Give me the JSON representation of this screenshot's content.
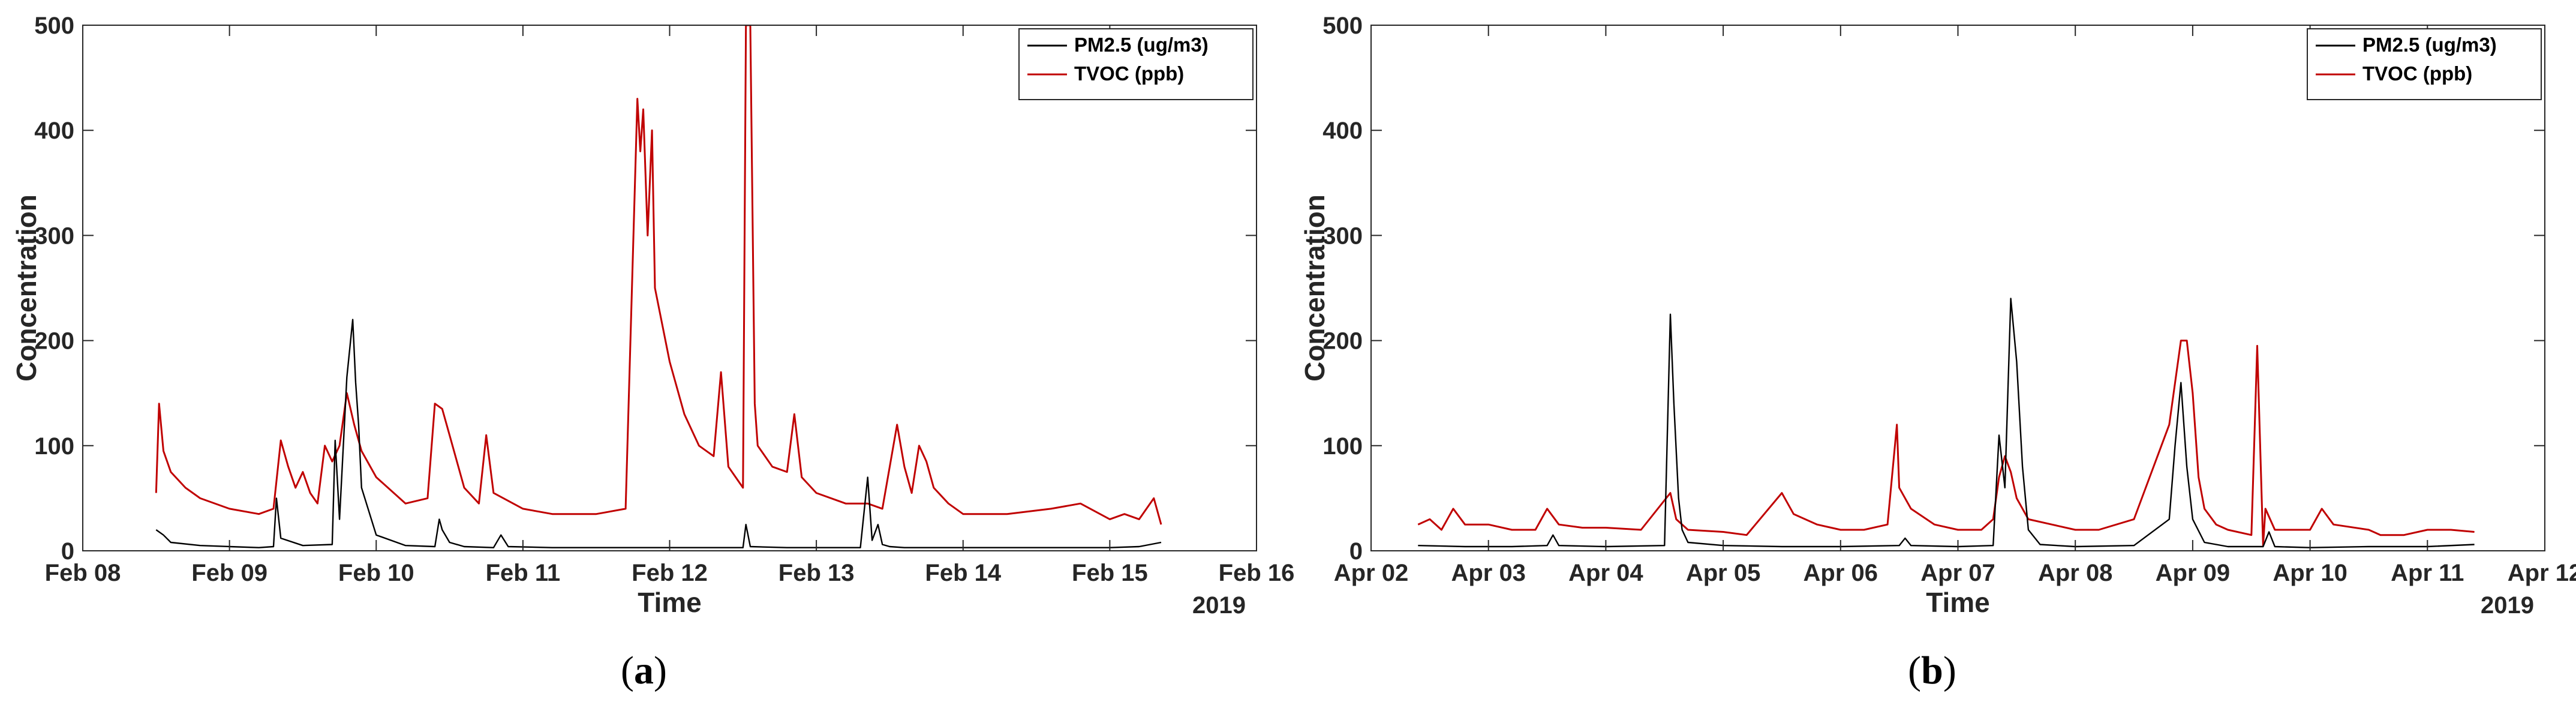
{
  "panels": [
    {
      "caption_open": "(",
      "caption_letter": "a",
      "caption_close": ")",
      "year_label": "2019"
    },
    {
      "caption_open": "(",
      "caption_letter": "b",
      "caption_close": ")",
      "year_label": "2019"
    }
  ],
  "chart_data": [
    {
      "type": "line",
      "xlabel": "Time",
      "ylabel": "Concentration",
      "ylim": [
        0,
        500
      ],
      "yticks": [
        0,
        100,
        200,
        300,
        400,
        500
      ],
      "xlim": [
        0,
        8
      ],
      "xticks": [
        0,
        1,
        2,
        3,
        4,
        5,
        6,
        7,
        8
      ],
      "xticklabels": [
        "Feb 08",
        "Feb 09",
        "Feb 10",
        "Feb 11",
        "Feb 12",
        "Feb 13",
        "Feb 14",
        "Feb 15",
        "Feb 16"
      ],
      "x_origin_date": "Feb 08",
      "x_unit": "days",
      "grid": false,
      "legend_position": "top-right",
      "series": [
        {
          "name": "PM2.5 (ug/m3)",
          "color": "#000000",
          "x": [
            0.5,
            0.55,
            0.6,
            0.8,
            1.0,
            1.2,
            1.3,
            1.32,
            1.35,
            1.5,
            1.7,
            1.72,
            1.75,
            1.8,
            1.84,
            1.86,
            1.88,
            1.9,
            2.0,
            2.2,
            2.4,
            2.43,
            2.45,
            2.5,
            2.6,
            2.8,
            2.85,
            2.9,
            3.2,
            3.5,
            3.8,
            4.0,
            4.5,
            4.52,
            4.55,
            4.8,
            5.0,
            5.3,
            5.35,
            5.38,
            5.42,
            5.45,
            5.5,
            5.6,
            5.8,
            6.0,
            6.5,
            7.0,
            7.2,
            7.35
          ],
          "y": [
            20,
            15,
            8,
            5,
            4,
            3,
            4,
            50,
            12,
            5,
            6,
            105,
            30,
            165,
            220,
            160,
            120,
            60,
            15,
            5,
            4,
            30,
            20,
            8,
            4,
            3,
            15,
            4,
            3,
            3,
            3,
            3,
            3,
            25,
            4,
            3,
            3,
            3,
            70,
            10,
            25,
            6,
            4,
            3,
            3,
            3,
            3,
            3,
            4,
            8
          ]
        },
        {
          "name": "TVOC (ppb)",
          "color": "#c00000",
          "x": [
            0.5,
            0.52,
            0.55,
            0.6,
            0.7,
            0.8,
            1.0,
            1.2,
            1.3,
            1.35,
            1.4,
            1.45,
            1.5,
            1.55,
            1.6,
            1.65,
            1.7,
            1.75,
            1.8,
            1.85,
            1.9,
            2.0,
            2.2,
            2.35,
            2.4,
            2.45,
            2.5,
            2.6,
            2.7,
            2.75,
            2.8,
            3.0,
            3.2,
            3.5,
            3.7,
            3.78,
            3.8,
            3.82,
            3.85,
            3.88,
            3.9,
            4.0,
            4.1,
            4.2,
            4.3,
            4.35,
            4.4,
            4.45,
            4.5,
            4.52,
            4.55,
            4.58,
            4.6,
            4.7,
            4.8,
            4.85,
            4.9,
            5.0,
            5.2,
            5.35,
            5.45,
            5.55,
            5.6,
            5.65,
            5.7,
            5.75,
            5.8,
            5.9,
            6.0,
            6.3,
            6.6,
            6.8,
            7.0,
            7.1,
            7.2,
            7.3,
            7.35
          ],
          "y": [
            55,
            140,
            95,
            75,
            60,
            50,
            40,
            35,
            40,
            105,
            80,
            60,
            75,
            55,
            45,
            100,
            85,
            100,
            150,
            120,
            95,
            70,
            45,
            50,
            140,
            135,
            110,
            60,
            45,
            110,
            55,
            40,
            35,
            35,
            40,
            430,
            380,
            420,
            300,
            400,
            250,
            180,
            130,
            100,
            90,
            170,
            80,
            70,
            60,
            500,
            500,
            140,
            100,
            80,
            75,
            130,
            70,
            55,
            45,
            45,
            40,
            120,
            80,
            55,
            100,
            85,
            60,
            45,
            35,
            35,
            40,
            45,
            30,
            35,
            30,
            50,
            25
          ]
        }
      ]
    },
    {
      "type": "line",
      "xlabel": "Time",
      "ylabel": "Concentration",
      "ylim": [
        0,
        500
      ],
      "yticks": [
        0,
        100,
        200,
        300,
        400,
        500
      ],
      "xlim": [
        0,
        10
      ],
      "xticks": [
        0,
        1,
        2,
        3,
        4,
        5,
        6,
        7,
        8,
        9,
        10
      ],
      "xticklabels": [
        "Apr 02",
        "Apr 03",
        "Apr 04",
        "Apr 05",
        "Apr 06",
        "Apr 07",
        "Apr 08",
        "Apr 09",
        "Apr 10",
        "Apr 11",
        "Apr 12"
      ],
      "x_origin_date": "Apr 02",
      "x_unit": "days",
      "grid": false,
      "legend_position": "top-right",
      "series": [
        {
          "name": "PM2.5 (ug/m3)",
          "color": "#000000",
          "x": [
            0.4,
            0.8,
            1.2,
            1.5,
            1.55,
            1.6,
            2.0,
            2.5,
            2.55,
            2.58,
            2.62,
            2.65,
            2.7,
            3.0,
            3.5,
            4.0,
            4.5,
            4.55,
            4.6,
            5.0,
            5.3,
            5.35,
            5.4,
            5.45,
            5.5,
            5.55,
            5.6,
            5.7,
            6.0,
            6.5,
            6.8,
            6.85,
            6.9,
            6.95,
            7.0,
            7.1,
            7.3,
            7.6,
            7.65,
            7.7,
            8.0,
            8.5,
            9.0,
            9.4
          ],
          "y": [
            5,
            4,
            4,
            5,
            15,
            5,
            4,
            5,
            225,
            140,
            50,
            20,
            8,
            5,
            4,
            4,
            5,
            12,
            5,
            4,
            5,
            110,
            60,
            240,
            180,
            80,
            20,
            6,
            4,
            5,
            30,
            100,
            160,
            80,
            30,
            8,
            4,
            4,
            18,
            4,
            3,
            4,
            4,
            6
          ]
        },
        {
          "name": "TVOC (ppb)",
          "color": "#c00000",
          "x": [
            0.4,
            0.5,
            0.6,
            0.7,
            0.8,
            1.0,
            1.2,
            1.4,
            1.5,
            1.6,
            1.8,
            2.0,
            2.3,
            2.55,
            2.6,
            2.7,
            3.0,
            3.2,
            3.5,
            3.6,
            3.8,
            4.0,
            4.2,
            4.4,
            4.48,
            4.5,
            4.6,
            4.8,
            5.0,
            5.2,
            5.3,
            5.35,
            5.4,
            5.45,
            5.5,
            5.6,
            5.8,
            6.0,
            6.2,
            6.5,
            6.6,
            6.7,
            6.8,
            6.9,
            6.95,
            7.0,
            7.05,
            7.1,
            7.2,
            7.3,
            7.5,
            7.55,
            7.6,
            7.62,
            7.7,
            8.0,
            8.1,
            8.2,
            8.5,
            8.6,
            8.8,
            9.0,
            9.2,
            9.4
          ],
          "y": [
            25,
            30,
            20,
            40,
            25,
            25,
            20,
            20,
            40,
            25,
            22,
            22,
            20,
            55,
            30,
            20,
            18,
            15,
            55,
            35,
            25,
            20,
            20,
            25,
            120,
            60,
            40,
            25,
            20,
            20,
            30,
            70,
            90,
            75,
            50,
            30,
            25,
            20,
            20,
            30,
            60,
            90,
            120,
            200,
            200,
            150,
            70,
            40,
            25,
            20,
            15,
            195,
            5,
            40,
            20,
            20,
            40,
            25,
            20,
            15,
            15,
            20,
            20,
            18
          ]
        }
      ]
    }
  ]
}
